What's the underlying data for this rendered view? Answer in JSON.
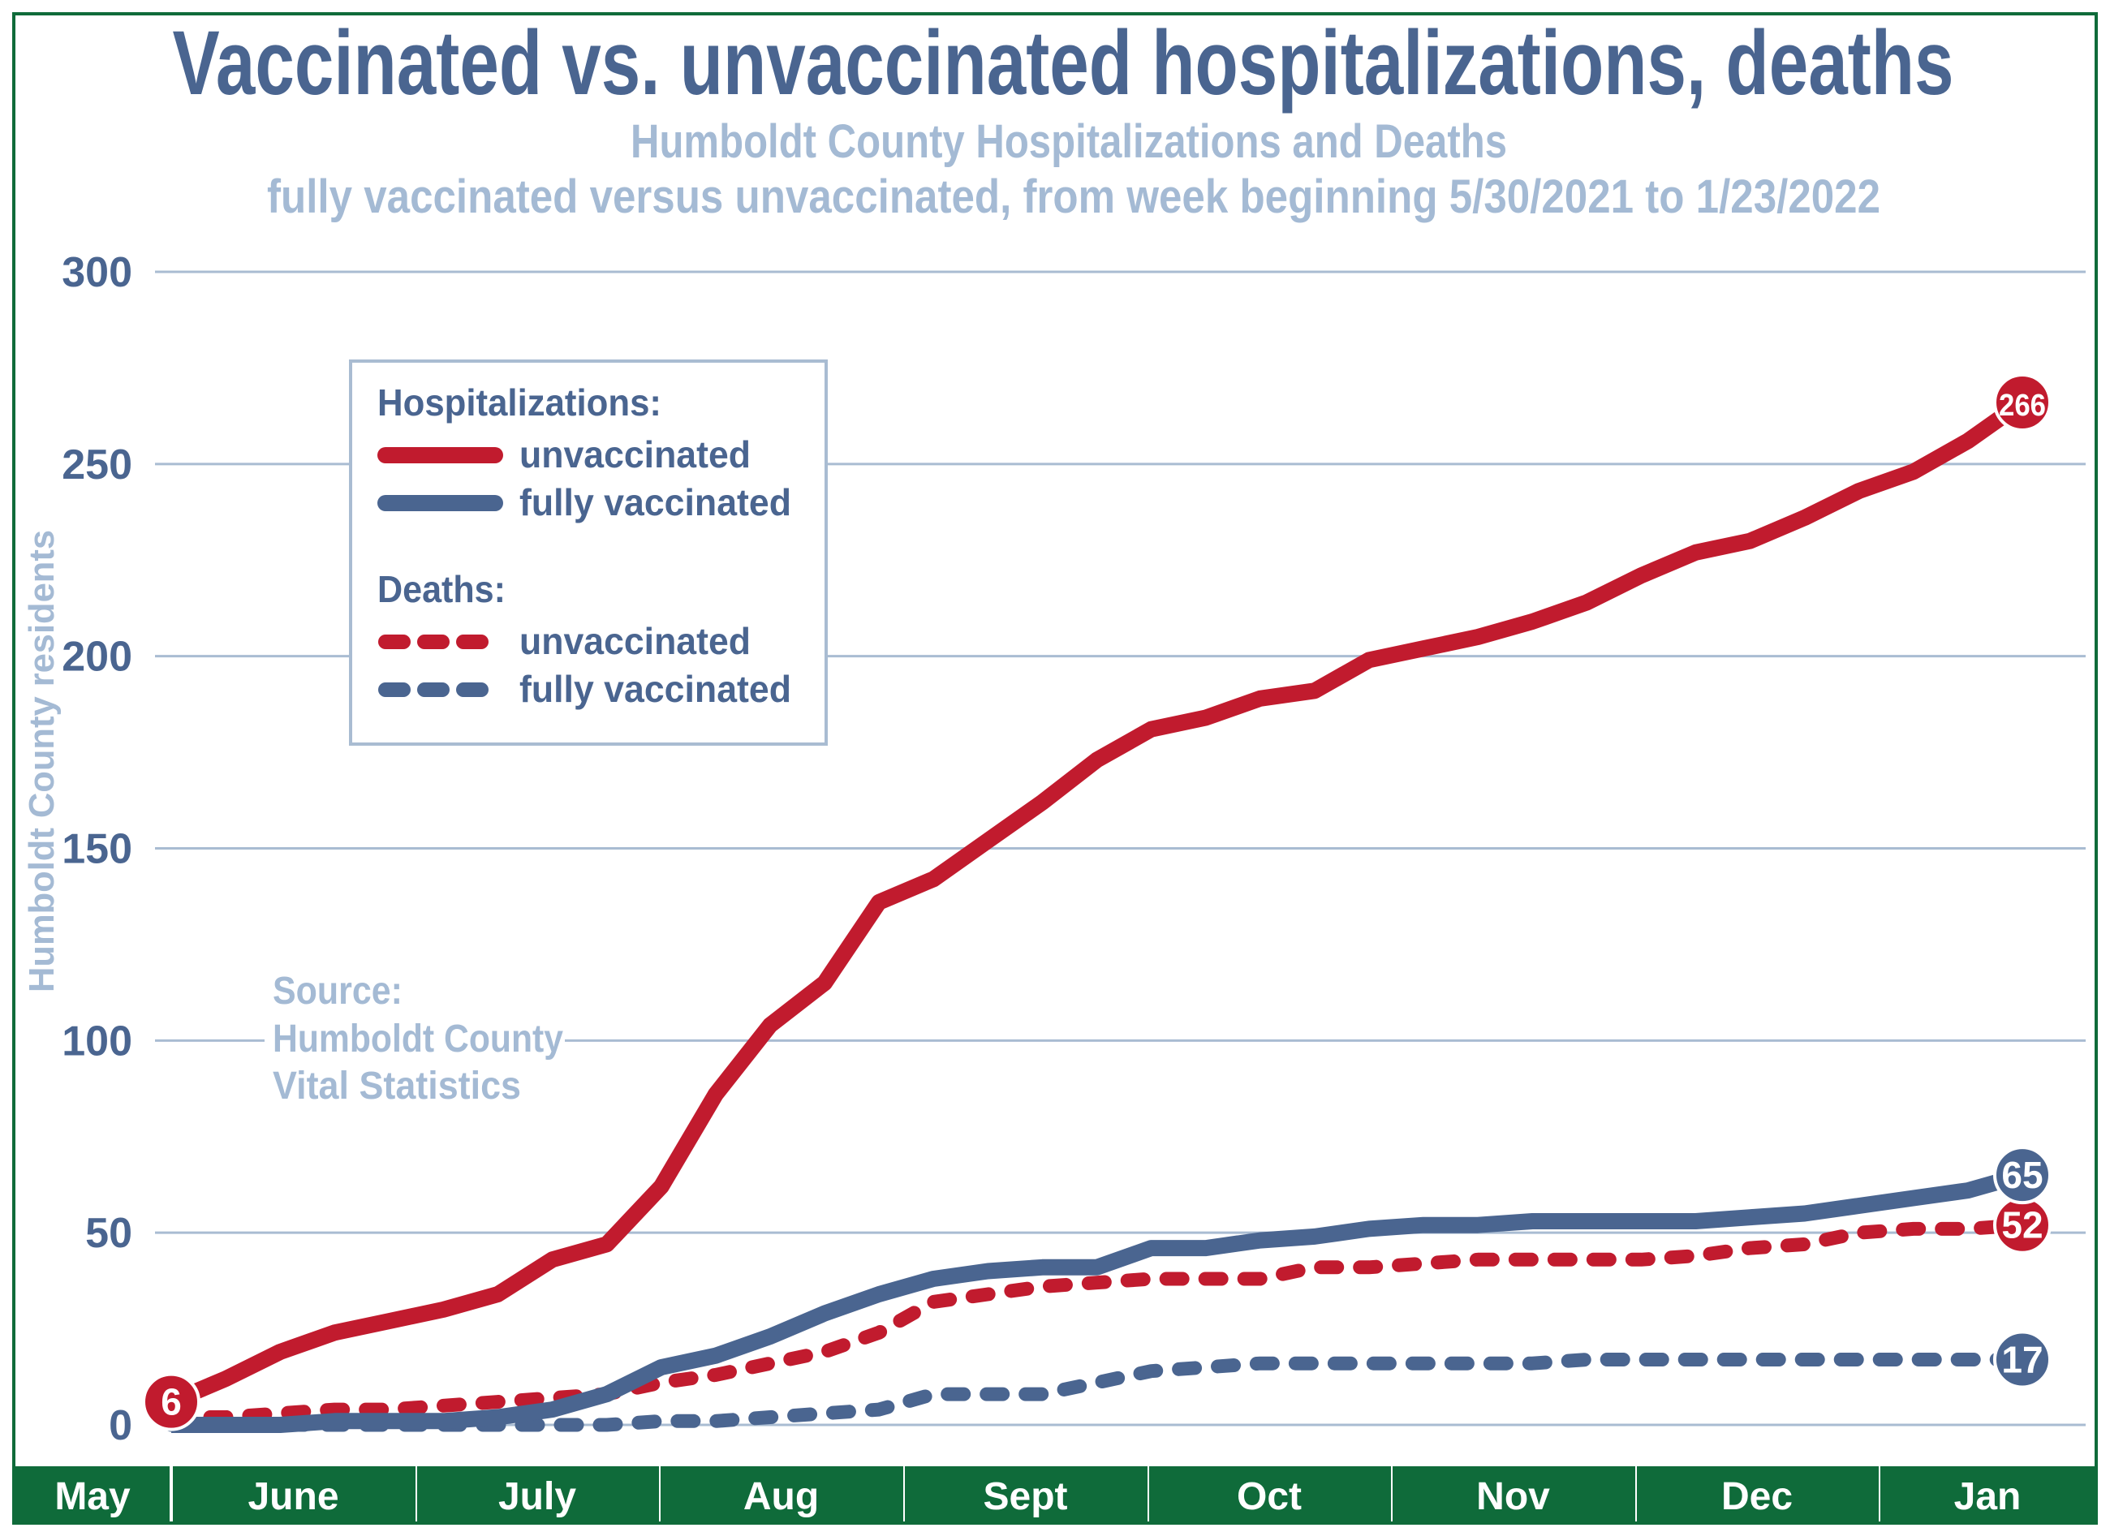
{
  "chart_data": {
    "type": "line",
    "title": "Vaccinated vs. unvaccinated hospitalizations, deaths",
    "subtitle": [
      "Humboldt County Hospitalizations and Deaths",
      "fully vaccinated versus unvaccinated, from week beginning 5/30/2021 to 1/23/2022"
    ],
    "ylabel": "Humboldt County residents",
    "ylim": [
      0,
      300
    ],
    "yticks": [
      "0",
      "50",
      "100",
      "150",
      "200",
      "250",
      "300"
    ],
    "grid": true,
    "x_start": "5/30/2021",
    "x_end": "1/23/2022",
    "x_interval": "weekly",
    "months": [
      "May",
      "June",
      "July",
      "Aug",
      "Sept",
      "Oct",
      "Nov",
      "Dec",
      "Jan"
    ],
    "legend": {
      "placement": "top-left",
      "hosp_heading": "Hospitalizations:",
      "deaths_heading": "Deaths:",
      "unvax_label": "unvaccinated",
      "vax_label": "fully vaccinated"
    },
    "source": [
      "Source:",
      "Humboldt County",
      "Vital Statistics"
    ],
    "colors": {
      "unvaccinated": "#C11B2E",
      "vaccinated": "#4A6590",
      "subtitle": "#A4BAD4",
      "band": "#0F6B3A",
      "grid": "#A9BCD2"
    },
    "series": [
      {
        "group": "Hospitalizations",
        "name": "unvaccinated",
        "style": "solid",
        "color_key": "unvaccinated",
        "values": [
          6,
          12,
          19,
          24,
          27,
          30,
          34,
          43,
          47,
          62,
          86,
          104,
          115,
          136,
          142,
          152,
          162,
          173,
          181,
          184,
          189,
          191,
          199,
          202,
          205,
          209,
          214,
          221,
          227,
          230,
          236,
          243,
          248,
          256,
          266
        ],
        "start_label": "6",
        "end_label": "266"
      },
      {
        "group": "Hospitalizations",
        "name": "fully vaccinated",
        "style": "solid",
        "color_key": "vaccinated",
        "values": [
          0,
          0,
          0,
          1,
          1,
          1,
          2,
          4,
          8,
          15,
          18,
          23,
          29,
          34,
          38,
          40,
          41,
          41,
          46,
          46,
          48,
          49,
          51,
          52,
          52,
          53,
          53,
          53,
          53,
          54,
          55,
          57,
          59,
          61,
          65
        ],
        "end_label": "65"
      },
      {
        "group": "Deaths",
        "name": "unvaccinated",
        "style": "dashed",
        "color_key": "unvaccinated",
        "values": [
          2,
          2,
          3,
          4,
          4,
          5,
          6,
          7,
          8,
          11,
          13,
          16,
          19,
          24,
          32,
          34,
          36,
          37,
          38,
          38,
          38,
          41,
          41,
          42,
          43,
          43,
          43,
          43,
          44,
          46,
          47,
          50,
          51,
          51,
          52
        ],
        "end_label": "52"
      },
      {
        "group": "Deaths",
        "name": "fully vaccinated",
        "style": "dashed",
        "color_key": "vaccinated",
        "values": [
          0,
          0,
          0,
          0,
          0,
          0,
          0,
          0,
          0,
          1,
          1,
          2,
          3,
          4,
          8,
          8,
          8,
          11,
          14,
          15,
          16,
          16,
          16,
          16,
          16,
          16,
          17,
          17,
          17,
          17,
          17,
          17,
          17,
          17,
          17
        ],
        "end_label": "17"
      }
    ]
  }
}
